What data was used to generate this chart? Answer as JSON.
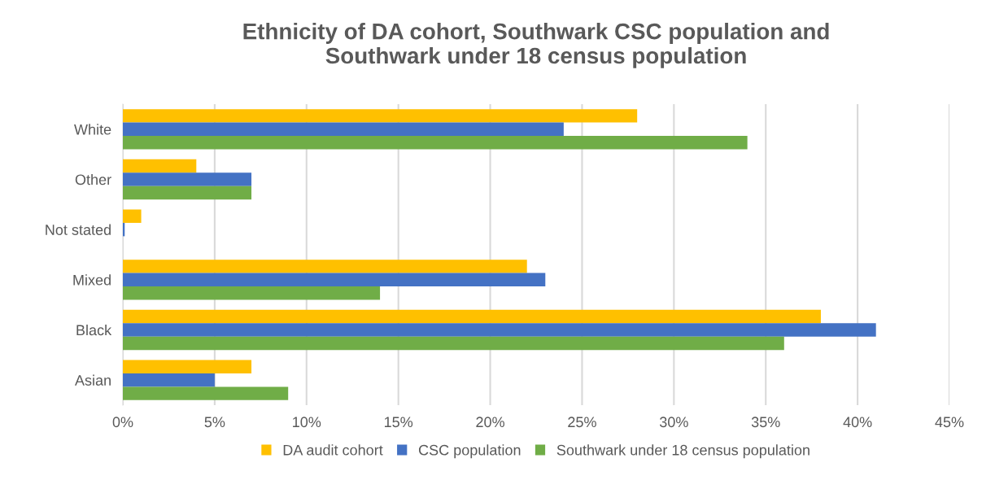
{
  "chart_data": {
    "type": "bar",
    "orientation": "horizontal",
    "title": "Ethnicity of DA cohort, Southwark CSC population and\nSouthwark under 18 census population",
    "categories": [
      "White",
      "Other",
      "Not stated",
      "Mixed",
      "Black",
      "Asian"
    ],
    "series": [
      {
        "name": "DA audit cohort",
        "color": "#ffc000",
        "values": [
          28,
          4,
          1,
          22,
          38,
          7
        ]
      },
      {
        "name": "CSC population",
        "color": "#4472c4",
        "values": [
          24,
          7,
          0.1,
          23,
          41,
          5
        ]
      },
      {
        "name": "Southwark under 18 census population",
        "color": "#70ad47",
        "values": [
          34,
          7,
          0,
          14,
          36,
          9
        ]
      }
    ],
    "xlim": [
      0,
      45
    ],
    "xticks": [
      {
        "value": 0,
        "label": "0%"
      },
      {
        "value": 5,
        "label": "5%"
      },
      {
        "value": 10,
        "label": "10%"
      },
      {
        "value": 15,
        "label": "15%"
      },
      {
        "value": 20,
        "label": "20%"
      },
      {
        "value": 25,
        "label": "25%"
      },
      {
        "value": 30,
        "label": "30%"
      },
      {
        "value": 35,
        "label": "35%"
      },
      {
        "value": 40,
        "label": "40%"
      },
      {
        "value": 45,
        "label": "45%"
      }
    ],
    "grid": "x",
    "legend": "bottom"
  }
}
